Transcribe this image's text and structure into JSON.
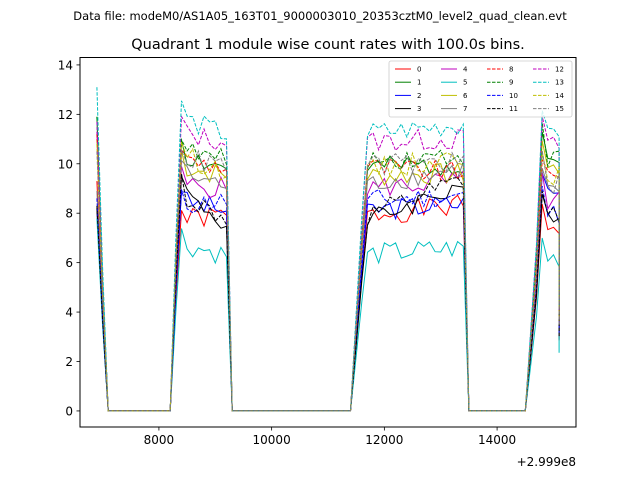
{
  "chart_data": {
    "type": "line",
    "suptitle": "Data file: modeM0/AS1A05_163T01_9000003010_20353cztM0_level2_quad_clean.evt",
    "title": "Quadrant 1 module wise count rates with 100.0s bins.",
    "xlabel": "",
    "ylabel": "",
    "x_offset_label": "+2.999e8",
    "xlim": [
      6600,
      15400
    ],
    "ylim": [
      -0.65,
      14.3
    ],
    "x_ticks": [
      8000,
      10000,
      12000,
      14000
    ],
    "x_tick_labels": [
      "8000",
      "10000",
      "12000",
      "14000"
    ],
    "y_ticks": [
      0,
      2,
      4,
      6,
      8,
      10,
      12,
      14
    ],
    "y_tick_labels": [
      "0",
      "2",
      "4",
      "6",
      "8",
      "10",
      "12",
      "14"
    ],
    "grid": false,
    "legend_position": "top-right",
    "series": [
      {
        "name": "0",
        "color": "#ff0000",
        "style": "solid",
        "levels": [
          9.3,
          7.7,
          7.9,
          8.3,
          7.5
        ]
      },
      {
        "name": "1",
        "color": "#008000",
        "style": "solid",
        "levels": [
          11.9,
          10.5,
          9.8,
          10.0,
          10.2
        ]
      },
      {
        "name": "2",
        "color": "#0000ff",
        "style": "solid",
        "levels": [
          8.2,
          8.6,
          8.1,
          8.4,
          8.8
        ]
      },
      {
        "name": "3",
        "color": "#000000",
        "style": "solid",
        "levels": [
          8.2,
          9.3,
          7.5,
          9.2,
          7.6
        ]
      },
      {
        "name": "4",
        "color": "#bf00bf",
        "style": "solid",
        "levels": [
          11.3,
          9.2,
          9.0,
          9.3,
          8.5
        ]
      },
      {
        "name": "5",
        "color": "#00bfbf",
        "style": "solid",
        "levels": [
          7.8,
          6.9,
          6.3,
          6.6,
          6.2
        ]
      },
      {
        "name": "6",
        "color": "#bfbf00",
        "style": "solid",
        "levels": [
          11.0,
          10.0,
          9.5,
          9.6,
          9.8
        ]
      },
      {
        "name": "7",
        "color": "#808080",
        "style": "solid",
        "levels": [
          8.9,
          9.7,
          9.1,
          9.8,
          8.9
        ]
      },
      {
        "name": "8",
        "color": "#ff0000",
        "style": "dashed",
        "levels": [
          11.2,
          10.2,
          9.9,
          9.6,
          9.3
        ]
      },
      {
        "name": "9",
        "color": "#008000",
        "style": "dashed",
        "levels": [
          11.9,
          10.7,
          10.1,
          10.4,
          10.2
        ]
      },
      {
        "name": "10",
        "color": "#0000ff",
        "style": "dashed",
        "levels": [
          8.6,
          8.3,
          8.5,
          8.7,
          8.0
        ]
      },
      {
        "name": "11",
        "color": "#000000",
        "style": "dashed",
        "levels": [
          8.3,
          9.0,
          7.7,
          9.3,
          7.9
        ]
      },
      {
        "name": "12",
        "color": "#bf00bf",
        "style": "dashed",
        "levels": [
          11.7,
          11.3,
          10.9,
          11.0,
          10.7
        ]
      },
      {
        "name": "13",
        "color": "#00bfbf",
        "style": "dashed",
        "levels": [
          13.1,
          12.0,
          11.2,
          11.6,
          11.0
        ]
      },
      {
        "name": "14",
        "color": "#bfbf00",
        "style": "dashed",
        "levels": [
          10.8,
          10.5,
          9.7,
          10.3,
          9.6
        ]
      },
      {
        "name": "15",
        "color": "#808080",
        "style": "dashed",
        "levels": [
          10.5,
          10.3,
          9.9,
          10.1,
          9.2
        ]
      }
    ],
    "segments": [
      {
        "start": 6900,
        "end": 7000,
        "mode": "decay"
      },
      {
        "start": 8200,
        "end": 9200,
        "mode": "on"
      },
      {
        "start": 11500,
        "end": 13400,
        "mode": "on"
      },
      {
        "start": 14600,
        "end": 15100,
        "mode": "on"
      }
    ],
    "gaps": [
      {
        "start": 7100,
        "end": 8200
      },
      {
        "start": 9300,
        "end": 11400
      },
      {
        "start": 13500,
        "end": 14500
      }
    ],
    "x_end": 15100
  }
}
